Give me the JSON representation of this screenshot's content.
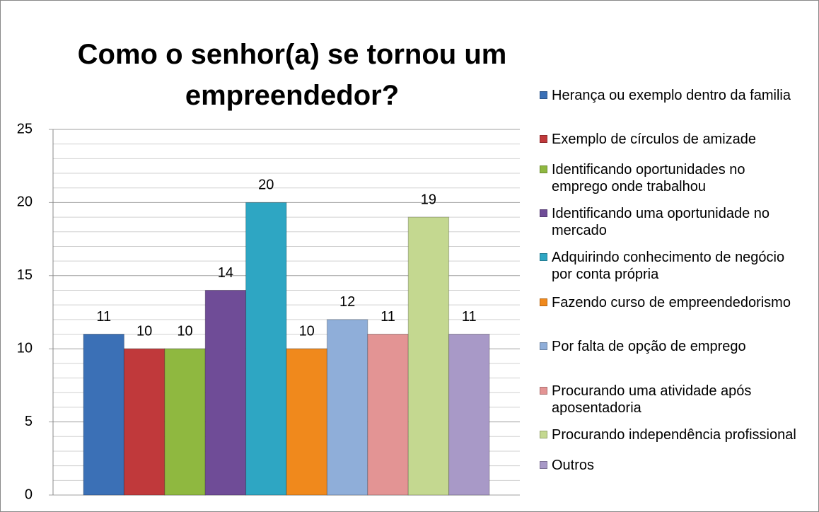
{
  "chart_data": {
    "type": "bar",
    "title": "Como o senhor(a) se tornou um empreendedor?",
    "categories": [
      "Herança ou exemplo dentro da familia",
      "Exemplo de círculos de amizade",
      "Identificando oportunidades no emprego onde trabalhou",
      "Identificando uma oportunidade no mercado",
      "Adquirindo conhecimento de negócio por conta própria",
      "Fazendo curso de empreendedorismo",
      "Por falta de opção de emprego",
      "Procurando uma atividade após aposentadoria",
      "Procurando independência profissional",
      "Outros"
    ],
    "values": [
      11,
      10,
      10,
      14,
      20,
      10,
      12,
      11,
      19,
      11
    ],
    "colors": [
      "#3b70b6",
      "#c0393b",
      "#8fb840",
      "#6f4c97",
      "#2ea6c3",
      "#f0891c",
      "#8faed9",
      "#e39494",
      "#c4d890",
      "#a899c7"
    ],
    "ylim": [
      0,
      25
    ],
    "yticks": [
      0,
      5,
      10,
      15,
      20,
      25
    ],
    "minor_yticks": [
      1,
      2,
      3,
      4,
      6,
      7,
      8,
      9,
      11,
      12,
      13,
      14,
      16,
      17,
      18,
      19,
      21,
      22,
      23,
      24
    ],
    "grid": true,
    "legend": "right"
  }
}
